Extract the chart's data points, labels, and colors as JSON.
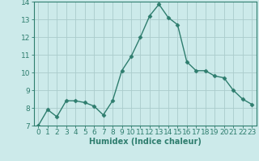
{
  "x": [
    0,
    1,
    2,
    3,
    4,
    5,
    6,
    7,
    8,
    9,
    10,
    11,
    12,
    13,
    14,
    15,
    16,
    17,
    18,
    19,
    20,
    21,
    22,
    23
  ],
  "y": [
    7.0,
    7.9,
    7.5,
    8.4,
    8.4,
    8.3,
    8.1,
    7.6,
    8.4,
    10.1,
    10.9,
    12.0,
    13.2,
    13.85,
    13.1,
    12.7,
    10.6,
    10.1,
    10.1,
    9.8,
    9.7,
    9.0,
    8.5,
    8.2
  ],
  "line_color": "#2e7d6e",
  "marker": "D",
  "marker_size": 2.5,
  "background_color": "#cceaea",
  "grid_color": "#aacccc",
  "xlabel": "Humidex (Indice chaleur)",
  "ylim": [
    7,
    14
  ],
  "xlim": [
    -0.5,
    23.5
  ],
  "yticks": [
    7,
    8,
    9,
    10,
    11,
    12,
    13,
    14
  ],
  "xticks": [
    0,
    1,
    2,
    3,
    4,
    5,
    6,
    7,
    8,
    9,
    10,
    11,
    12,
    13,
    14,
    15,
    16,
    17,
    18,
    19,
    20,
    21,
    22,
    23
  ],
  "xlabel_fontsize": 7,
  "tick_fontsize": 6.5,
  "line_width": 1.0
}
